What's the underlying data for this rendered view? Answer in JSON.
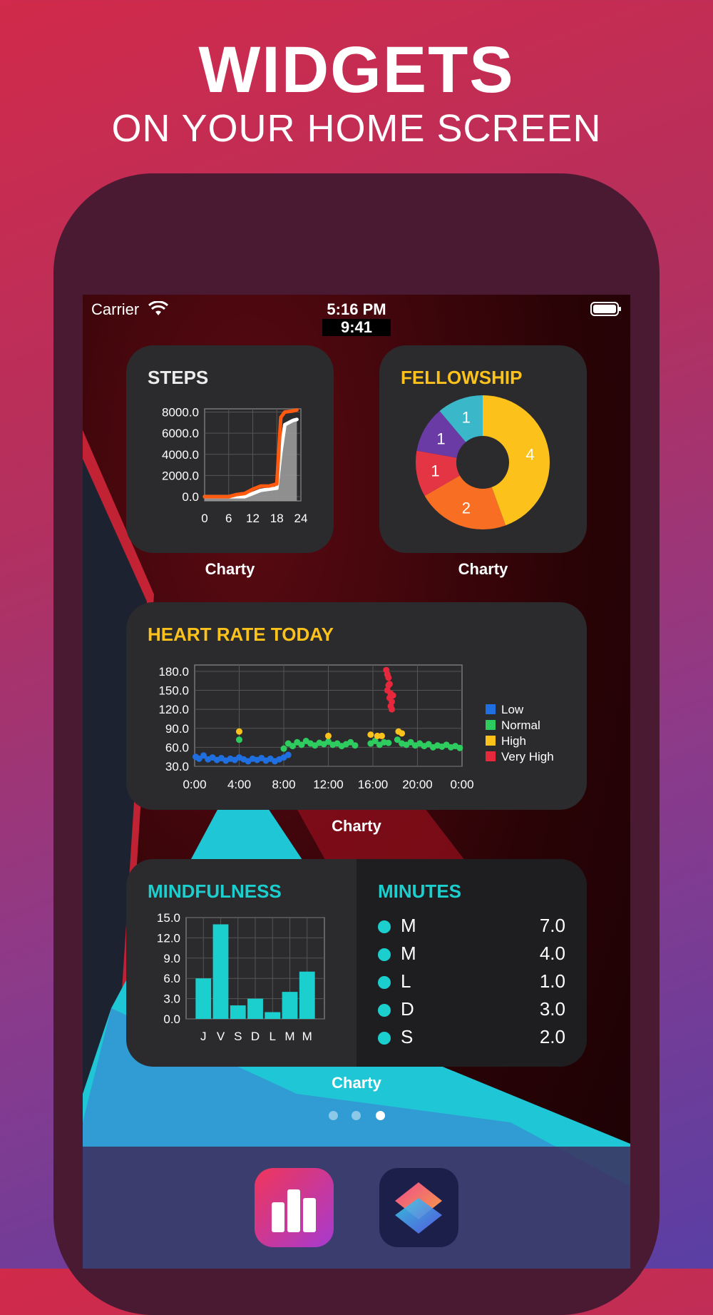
{
  "hero": {
    "title": "WIDGETS",
    "subtitle": "ON YOUR HOME SCREEN"
  },
  "status_bar": {
    "carrier": "Carrier",
    "time": "5:16 PM",
    "simulated_time": "9:41"
  },
  "widgets": {
    "steps": {
      "title": "STEPS",
      "caption": "Charty",
      "chart_data": {
        "type": "line",
        "x": [
          0,
          6,
          8,
          10,
          12,
          14,
          16,
          18,
          19,
          20,
          22,
          23
        ],
        "series": [
          {
            "values": [
              0,
              0,
              200,
              300,
              700,
              1000,
              1000,
              1200,
              7500,
              8000,
              8100,
              8200
            ],
            "color": "#ff5a10"
          },
          {
            "values": [
              0,
              0,
              0,
              0,
              300,
              600,
              700,
              800,
              4200,
              6800,
              7200,
              7300
            ],
            "color": "#ffffff"
          }
        ],
        "x_ticks": [
          "0",
          "6",
          "12",
          "18",
          "24"
        ],
        "y_ticks": [
          "8000.0",
          "6000.0",
          "4000.0",
          "2000.0",
          "0.0"
        ],
        "xlim": [
          0,
          24
        ],
        "ylim": [
          -400,
          8300
        ],
        "grid": true
      }
    },
    "fellowship": {
      "title": "FELLOWSHIP",
      "caption": "Charty",
      "chart_data": {
        "type": "pie",
        "slices": [
          {
            "value": 4,
            "label": "4",
            "color": "#fcc21b"
          },
          {
            "value": 2,
            "label": "2",
            "color": "#f86e22"
          },
          {
            "value": 1,
            "label": "1",
            "color": "#e43545"
          },
          {
            "value": 1,
            "label": "1",
            "color": "#6a3aa5"
          },
          {
            "value": 1,
            "label": "1",
            "color": "#3ab7c9"
          }
        ]
      }
    },
    "heart_rate": {
      "title": "HEART RATE TODAY",
      "caption": "Charty",
      "chart_data": {
        "type": "scatter",
        "x_ticks": [
          "0:00",
          "4:00",
          "8:00",
          "12:00",
          "16:00",
          "20:00",
          "0:00"
        ],
        "y_ticks": [
          "180.0",
          "150.0",
          "120.0",
          "90.0",
          "60.0",
          "30.0"
        ],
        "xlim": [
          0,
          24
        ],
        "ylim": [
          30,
          190
        ],
        "grid": true,
        "legend_position": "right",
        "series": [
          {
            "name": "Low",
            "color": "#1f6fe0",
            "points": [
              [
                0.1,
                45
              ],
              [
                0.4,
                42
              ],
              [
                0.8,
                47
              ],
              [
                1.2,
                41
              ],
              [
                1.6,
                44
              ],
              [
                2.0,
                40
              ],
              [
                2.4,
                43
              ],
              [
                2.8,
                39
              ],
              [
                3.2,
                42
              ],
              [
                3.6,
                40
              ],
              [
                4.0,
                44
              ],
              [
                4.4,
                41
              ],
              [
                4.8,
                38
              ],
              [
                5.2,
                42
              ],
              [
                5.6,
                40
              ],
              [
                6.0,
                43
              ],
              [
                6.4,
                39
              ],
              [
                6.8,
                42
              ],
              [
                7.2,
                38
              ],
              [
                7.6,
                41
              ],
              [
                8.0,
                44
              ],
              [
                8.4,
                48
              ]
            ]
          },
          {
            "name": "Normal",
            "color": "#2ecc5e",
            "points": [
              [
                4.0,
                72
              ],
              [
                8.0,
                58
              ],
              [
                8.4,
                66
              ],
              [
                8.8,
                62
              ],
              [
                9.2,
                68
              ],
              [
                9.6,
                64
              ],
              [
                10.0,
                70
              ],
              [
                10.4,
                66
              ],
              [
                10.8,
                63
              ],
              [
                11.2,
                67
              ],
              [
                11.6,
                65
              ],
              [
                12.0,
                69
              ],
              [
                12.4,
                64
              ],
              [
                12.8,
                66
              ],
              [
                13.2,
                62
              ],
              [
                13.6,
                65
              ],
              [
                14.0,
                68
              ],
              [
                14.4,
                63
              ],
              [
                15.8,
                66
              ],
              [
                16.2,
                70
              ],
              [
                16.6,
                64
              ],
              [
                17.0,
                68
              ],
              [
                17.4,
                67
              ],
              [
                18.2,
                72
              ],
              [
                18.6,
                66
              ],
              [
                19.0,
                64
              ],
              [
                19.4,
                68
              ],
              [
                19.8,
                63
              ],
              [
                20.2,
                66
              ],
              [
                20.6,
                62
              ],
              [
                21.0,
                65
              ],
              [
                21.4,
                60
              ],
              [
                21.8,
                63
              ],
              [
                22.2,
                61
              ],
              [
                22.6,
                64
              ],
              [
                23.0,
                60
              ],
              [
                23.4,
                62
              ],
              [
                23.8,
                59
              ]
            ]
          },
          {
            "name": "High",
            "color": "#fcc21b",
            "points": [
              [
                4.0,
                85
              ],
              [
                12.0,
                78
              ],
              [
                15.8,
                80
              ],
              [
                16.4,
                78
              ],
              [
                16.8,
                78
              ],
              [
                18.3,
                85
              ],
              [
                18.6,
                82
              ]
            ]
          },
          {
            "name": "Very High",
            "color": "#e6283c",
            "points": [
              [
                17.2,
                182
              ],
              [
                17.3,
                175
              ],
              [
                17.4,
                170
              ],
              [
                17.5,
                160
              ],
              [
                17.3,
                150
              ],
              [
                17.6,
                145
              ],
              [
                17.5,
                138
              ],
              [
                17.7,
                132
              ],
              [
                17.6,
                125
              ],
              [
                17.7,
                120
              ],
              [
                17.4,
                158
              ],
              [
                17.8,
                142
              ]
            ]
          }
        ]
      }
    },
    "mindfulness": {
      "title": "MINDFULNESS",
      "caption": "Charty",
      "chart_data": {
        "type": "bar",
        "categories": [
          "J",
          "V",
          "S",
          "D",
          "L",
          "M",
          "M"
        ],
        "values": [
          6,
          14,
          2,
          3,
          1,
          4,
          7
        ],
        "y_ticks": [
          "15.0",
          "12.0",
          "9.0",
          "6.0",
          "3.0",
          "0.0"
        ],
        "ylim": [
          0,
          15
        ],
        "grid": true,
        "color": "#1ccfcf"
      },
      "list_title": "MINUTES",
      "list": [
        {
          "label": "M",
          "value": "7.0"
        },
        {
          "label": "M",
          "value": "4.0"
        },
        {
          "label": "L",
          "value": "1.0"
        },
        {
          "label": "D",
          "value": "3.0"
        },
        {
          "label": "S",
          "value": "2.0"
        }
      ]
    }
  },
  "page_indicator": {
    "count": 3,
    "active": 3
  },
  "dock": {
    "apps": [
      "charty-app-icon",
      "shortcuts-app-icon"
    ]
  }
}
